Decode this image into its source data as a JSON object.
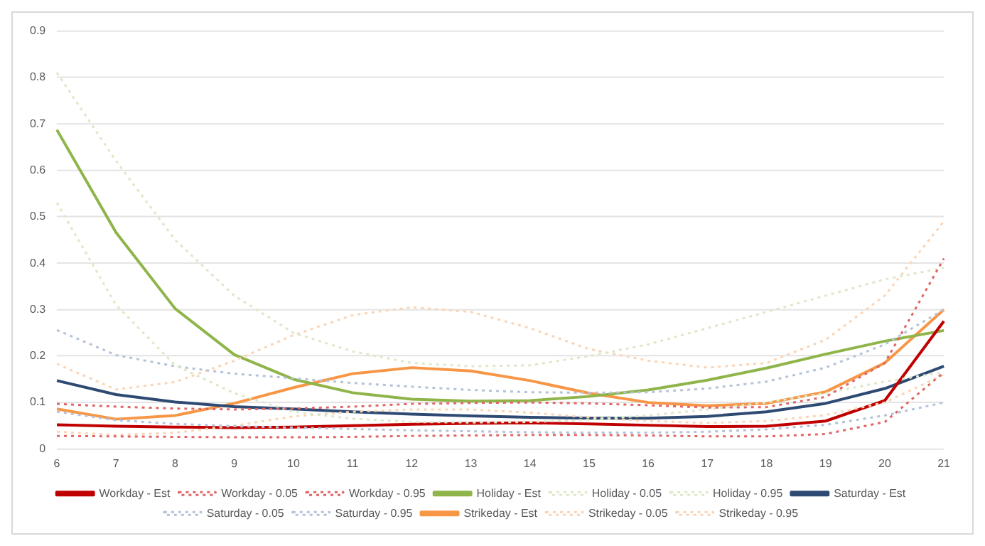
{
  "chart_data": {
    "type": "line",
    "categories": [
      "6",
      "7",
      "8",
      "9",
      "10",
      "11",
      "12",
      "13",
      "14",
      "15",
      "16",
      "17",
      "18",
      "19",
      "20",
      "21"
    ],
    "ylim": [
      0,
      0.9
    ],
    "yticks": [
      {
        "value": 0,
        "label": "0"
      },
      0.1,
      0.2,
      0.3,
      0.4,
      0.5,
      0.6,
      0.7,
      0.8,
      0.9
    ],
    "grid": "y",
    "legend": "bottom",
    "marker": "none",
    "series": [
      {
        "name": "Workday - Est",
        "color": "#c00000",
        "line_style": "solid",
        "values": [
          0.052,
          0.049,
          0.047,
          0.046,
          0.047,
          0.05,
          0.053,
          0.055,
          0.056,
          0.054,
          0.051,
          0.048,
          0.049,
          0.06,
          0.104,
          0.275
        ]
      },
      {
        "name": "Workday - 0.05",
        "color": "#e06666",
        "line_style": "dotted",
        "values": [
          0.028,
          0.027,
          0.026,
          0.025,
          0.025,
          0.026,
          0.028,
          0.029,
          0.03,
          0.03,
          0.029,
          0.027,
          0.027,
          0.032,
          0.058,
          0.165
        ]
      },
      {
        "name": "Workday - 0.95",
        "color": "#e06666",
        "line_style": "dotted",
        "values": [
          0.097,
          0.091,
          0.087,
          0.085,
          0.087,
          0.091,
          0.097,
          0.099,
          0.1,
          0.098,
          0.094,
          0.089,
          0.09,
          0.112,
          0.185,
          0.41
        ]
      },
      {
        "name": "Holiday - Est",
        "color": "#8fb54a",
        "line_style": "solid",
        "values": [
          0.687,
          0.466,
          0.302,
          0.203,
          0.15,
          0.121,
          0.107,
          0.103,
          0.104,
          0.113,
          0.127,
          0.148,
          0.174,
          0.204,
          0.232,
          0.255
        ]
      },
      {
        "name": "Holiday - 0.05",
        "color": "#dde8c8",
        "line_style": "dotted",
        "values": [
          0.53,
          0.31,
          0.18,
          0.12,
          0.08,
          0.065,
          0.058,
          0.057,
          0.058,
          0.063,
          0.072,
          0.085,
          0.1,
          0.12,
          0.145,
          0.165
        ]
      },
      {
        "name": "Holiday - 0.95",
        "color": "#dde8c8",
        "line_style": "dotted",
        "values": [
          0.81,
          0.62,
          0.45,
          0.33,
          0.25,
          0.21,
          0.185,
          0.178,
          0.18,
          0.2,
          0.225,
          0.26,
          0.295,
          0.33,
          0.365,
          0.39
        ]
      },
      {
        "name": "Saturday - Est",
        "color": "#2e4a72",
        "line_style": "solid",
        "values": [
          0.147,
          0.117,
          0.101,
          0.091,
          0.086,
          0.08,
          0.075,
          0.071,
          0.068,
          0.066,
          0.066,
          0.07,
          0.08,
          0.098,
          0.13,
          0.178
        ]
      },
      {
        "name": "Saturday - 0.05",
        "color": "#b4c2d9",
        "line_style": "dotted",
        "values": [
          0.08,
          0.062,
          0.054,
          0.049,
          0.046,
          0.043,
          0.04,
          0.038,
          0.036,
          0.035,
          0.035,
          0.037,
          0.042,
          0.052,
          0.072,
          0.1
        ]
      },
      {
        "name": "Saturday - 0.95",
        "color": "#b4c2d9",
        "line_style": "dotted",
        "values": [
          0.256,
          0.202,
          0.178,
          0.162,
          0.152,
          0.142,
          0.134,
          0.127,
          0.122,
          0.121,
          0.122,
          0.13,
          0.145,
          0.175,
          0.225,
          0.3
        ]
      },
      {
        "name": "Strikeday - Est",
        "color": "#f79646",
        "line_style": "solid",
        "values": [
          0.086,
          0.064,
          0.072,
          0.098,
          0.132,
          0.162,
          0.175,
          0.168,
          0.147,
          0.12,
          0.1,
          0.093,
          0.098,
          0.123,
          0.185,
          0.3
        ]
      },
      {
        "name": "Strikeday - 0.05",
        "color": "#fbd4b4",
        "line_style": "dotted",
        "values": [
          0.037,
          0.03,
          0.035,
          0.05,
          0.07,
          0.08,
          0.085,
          0.085,
          0.078,
          0.068,
          0.06,
          0.056,
          0.06,
          0.073,
          0.1,
          0.16
        ]
      },
      {
        "name": "Strikeday - 0.95",
        "color": "#fbd4b4",
        "line_style": "dotted",
        "values": [
          0.183,
          0.128,
          0.144,
          0.19,
          0.245,
          0.288,
          0.305,
          0.295,
          0.26,
          0.215,
          0.19,
          0.175,
          0.185,
          0.235,
          0.33,
          0.49
        ]
      }
    ]
  }
}
